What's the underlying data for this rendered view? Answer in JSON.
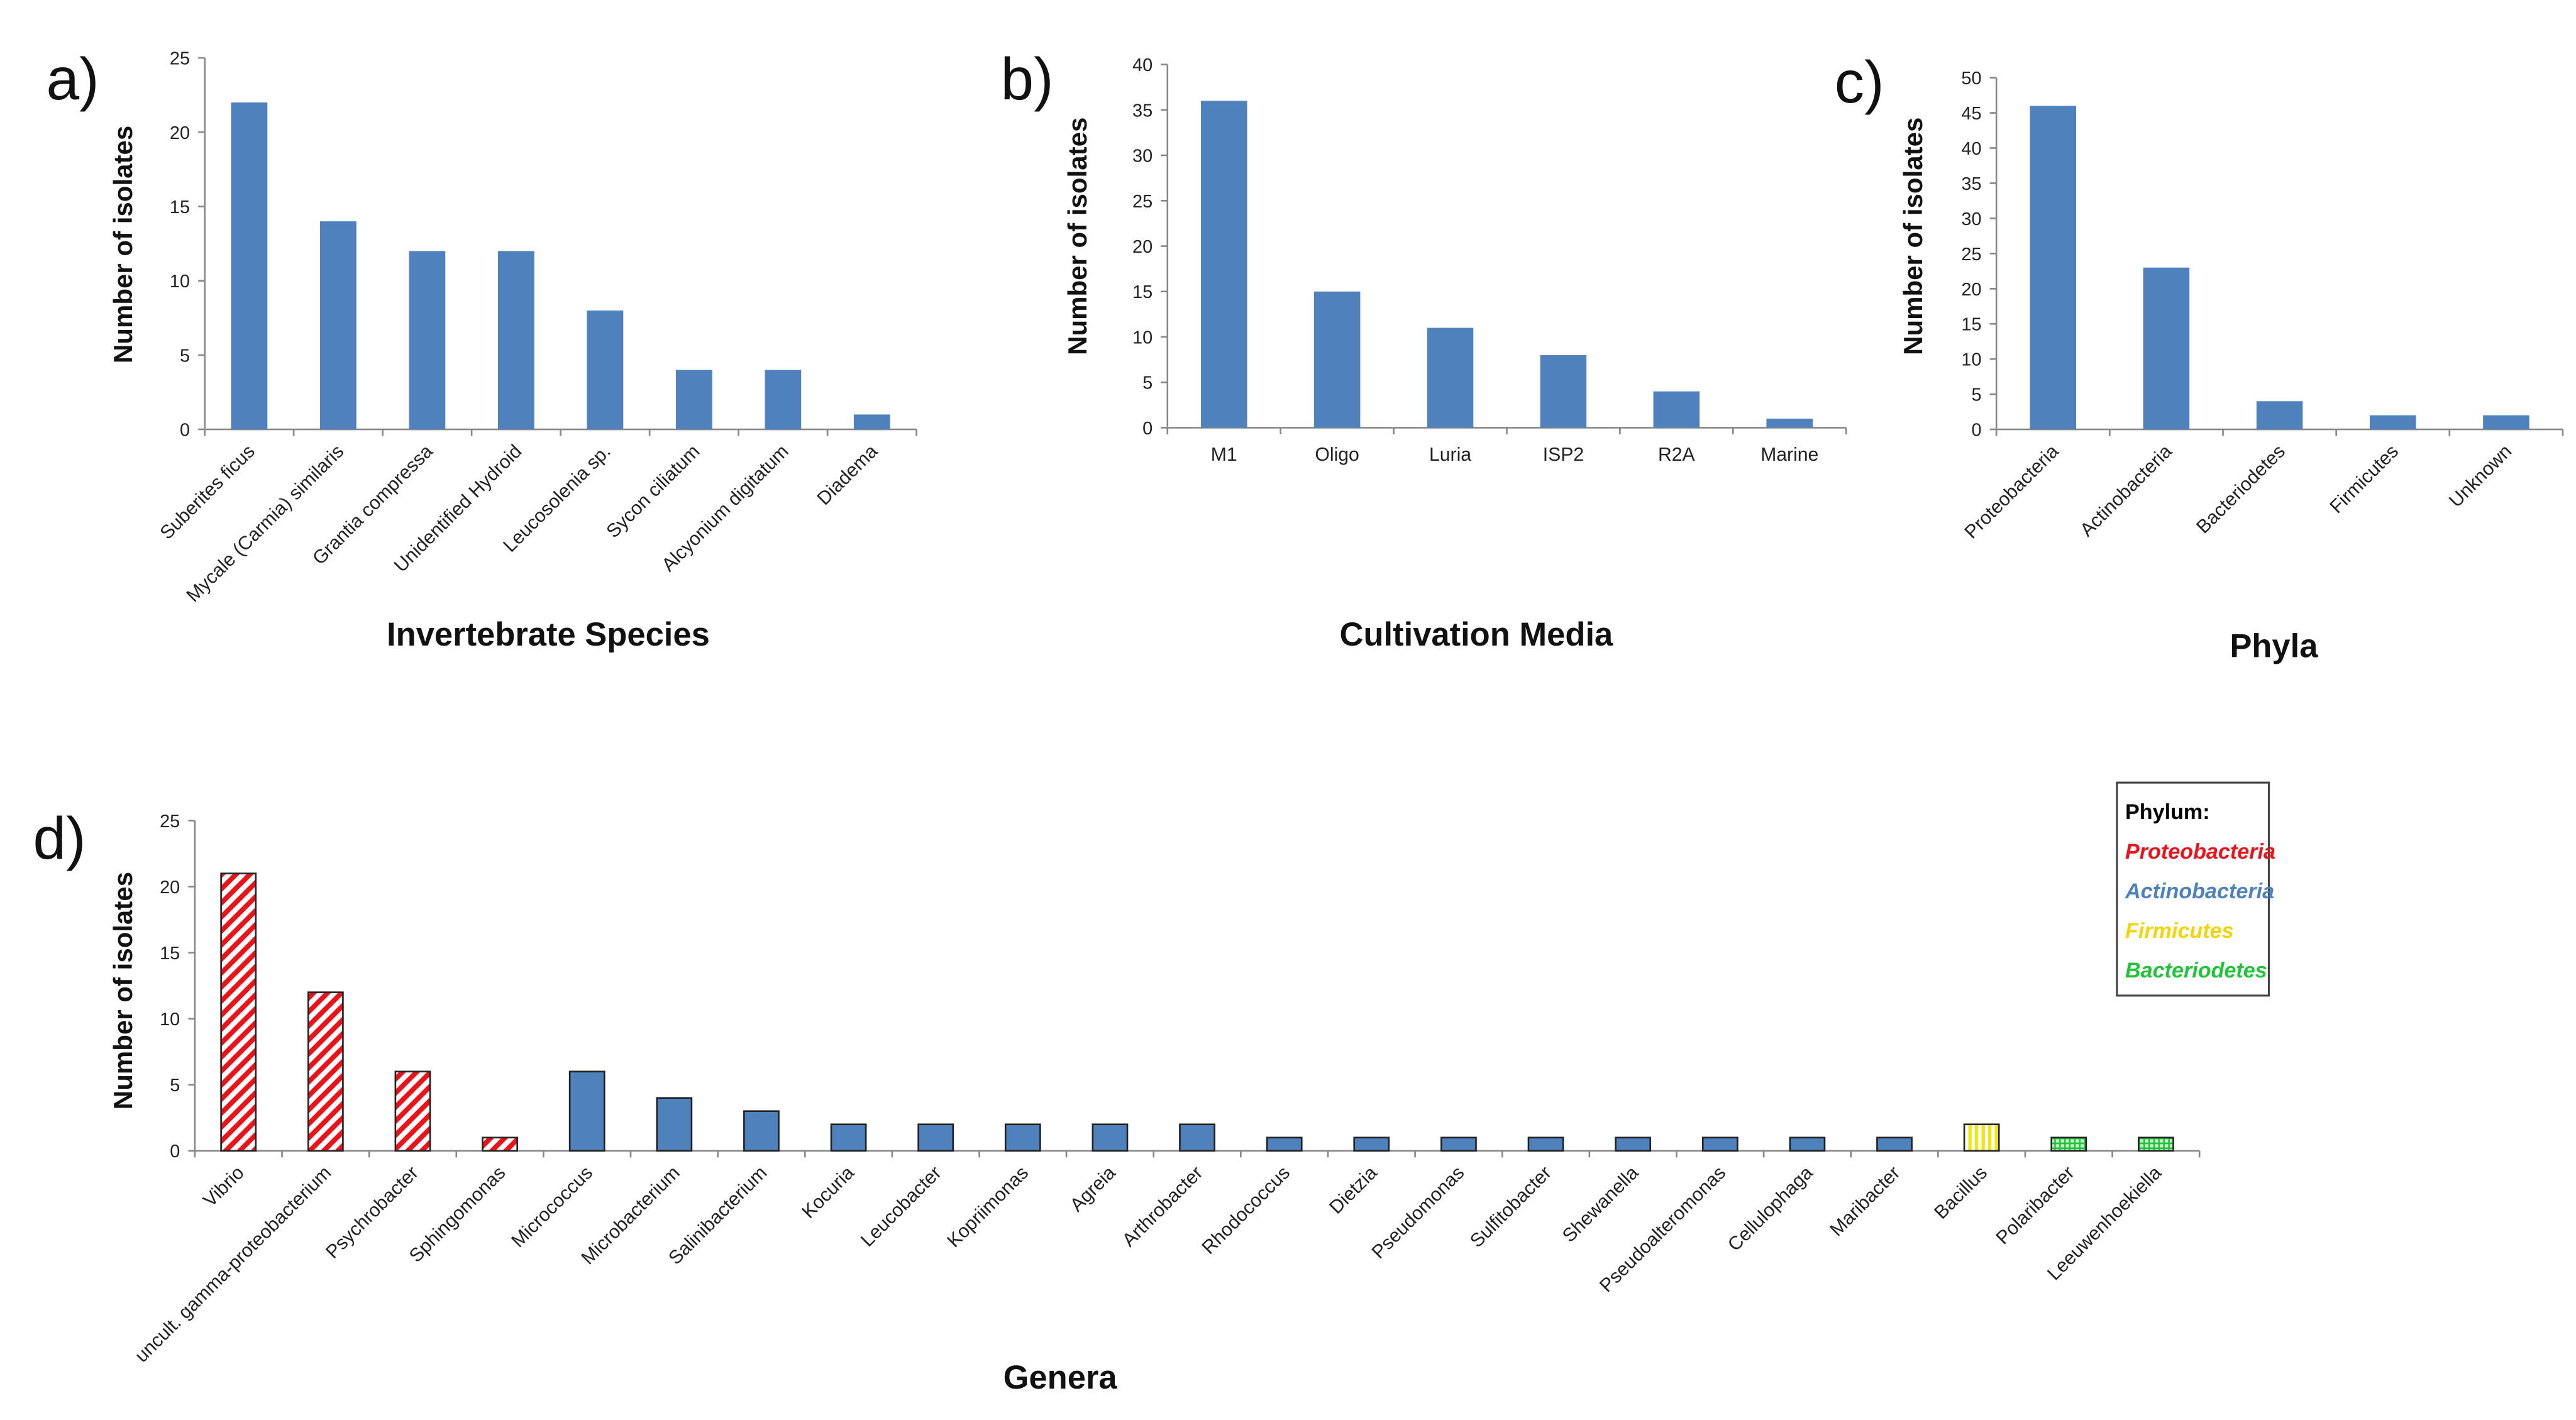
{
  "colors": {
    "blue": "#4f81bd",
    "proteobacteria": "#e8141c",
    "actinobacteria": "#4f81bd",
    "firmicutes": "#f2d40c",
    "bacteriodetes": "#22c33a",
    "axis": "#888888"
  },
  "chart_data": [
    {
      "type": "bar",
      "panel": "a)",
      "categories": [
        "Suberites ficus",
        "Mycale (Carmia) similaris",
        "Grantia compressa",
        "Unidentified Hydroid",
        "Leucosolenia sp.",
        "Sycon ciliatum",
        "Alcyonium digitatum",
        "Diadema"
      ],
      "values": [
        22,
        14,
        12,
        12,
        8,
        4,
        4,
        1
      ],
      "xlabel": "Invertebrate Species",
      "ylabel": "Number of isolates",
      "ylim": [
        0,
        25
      ],
      "yticks": [
        0,
        5,
        10,
        15,
        20,
        25
      ],
      "grid": false
    },
    {
      "type": "bar",
      "panel": "b)",
      "categories": [
        "M1",
        "Oligo",
        "Luria",
        "ISP2",
        "R2A",
        "Marine"
      ],
      "values": [
        36,
        15,
        11,
        8,
        4,
        1
      ],
      "xlabel": "Cultivation Media",
      "ylabel": "Number of isolates",
      "ylim": [
        0,
        40
      ],
      "yticks": [
        0,
        5,
        10,
        15,
        20,
        25,
        30,
        35,
        40
      ],
      "grid": false
    },
    {
      "type": "bar",
      "panel": "c)",
      "categories": [
        "Proteobacteria",
        "Actinobacteria",
        "Bacteriodetes",
        "Firmicutes",
        "Unknown"
      ],
      "values": [
        46,
        23,
        4,
        2,
        2
      ],
      "xlabel": "Phyla",
      "ylabel": "Number of isolates",
      "ylim": [
        0,
        50
      ],
      "yticks": [
        0,
        5,
        10,
        15,
        20,
        25,
        30,
        35,
        40,
        45,
        50
      ],
      "grid": false
    },
    {
      "type": "bar",
      "panel": "d)",
      "categories": [
        "Vibrio",
        "uncult. gamma-proteobacterium",
        "Psychrobacter",
        "Sphingomonas",
        "Micrococcus",
        "Microbacterium",
        "Salinibacterium",
        "Kocuria",
        "Leucobacter",
        "Kopriimonas",
        "Agreia",
        "Arthrobacter",
        "Rhodococcus",
        "Dietzia",
        "Pseudomonas",
        "Sulfitobacter",
        "Shewanella",
        "Pseudoalteromonas",
        "Cellulophaga",
        "Maribacter",
        "Bacillus",
        "Polaribacter",
        "Leeuwenhoekiella"
      ],
      "values": [
        21,
        12,
        6,
        1,
        6,
        4,
        3,
        2,
        2,
        2,
        2,
        2,
        1,
        1,
        1,
        1,
        1,
        1,
        1,
        1,
        2,
        1,
        1
      ],
      "phylum": [
        "proteobacteria",
        "proteobacteria",
        "proteobacteria",
        "proteobacteria",
        "actinobacteria",
        "actinobacteria",
        "actinobacteria",
        "actinobacteria",
        "actinobacteria",
        "actinobacteria",
        "actinobacteria",
        "actinobacteria",
        "actinobacteria",
        "actinobacteria",
        "actinobacteria",
        "actinobacteria",
        "actinobacteria",
        "actinobacteria",
        "actinobacteria",
        "actinobacteria",
        "firmicutes",
        "bacteriodetes",
        "bacteriodetes"
      ],
      "xlabel": "Genera",
      "ylabel": "Number of isolates",
      "ylim": [
        0,
        25
      ],
      "yticks": [
        0,
        5,
        10,
        15,
        20,
        25
      ],
      "grid": false,
      "legend": {
        "title": "Phylum:",
        "placement": "top-right",
        "items": [
          {
            "label": "Proteobacteria",
            "key": "proteobacteria"
          },
          {
            "label": "Actinobacteria",
            "key": "actinobacteria"
          },
          {
            "label": "Firmicutes",
            "key": "firmicutes"
          },
          {
            "label": "Bacteriodetes",
            "key": "bacteriodetes"
          }
        ]
      }
    }
  ]
}
